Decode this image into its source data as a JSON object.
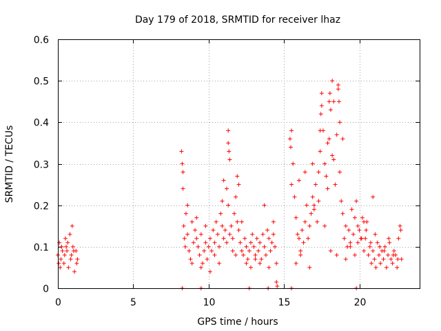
{
  "chart_data": {
    "type": "scatter",
    "title": "Day 179 of 2018, SRMTID for receiver lhaz",
    "xlabel": "GPS time / hours",
    "ylabel": "SRMTID / TECUs",
    "xlim": [
      0,
      24
    ],
    "ylim": [
      0,
      0.6
    ],
    "xticks": [
      0,
      5,
      10,
      15,
      20
    ],
    "xtick_labels": [
      "0",
      "5",
      "10",
      "15",
      "20"
    ],
    "yticks": [
      0,
      0.1,
      0.2,
      0.3,
      0.4,
      0.5,
      0.6
    ],
    "ytick_labels": [
      "0",
      "0.1",
      "0.2",
      "0.3",
      "0.4",
      "0.5",
      "0.6"
    ],
    "grid": true,
    "marker": "+",
    "series": [
      {
        "name": "SRMTID",
        "color": "#ff0000",
        "x": [
          0.0,
          0.1,
          0.2,
          0.3,
          0.4,
          0.5,
          0.6,
          0.7,
          0.8,
          0.9,
          1.0,
          1.1,
          1.2,
          1.3,
          0.05,
          0.25,
          0.45,
          0.65,
          0.85,
          1.05,
          1.25,
          0.15,
          0.55,
          0.95,
          8.2,
          8.25,
          8.3,
          8.35,
          8.4,
          8.45,
          8.5,
          8.6,
          8.7,
          8.8,
          8.9,
          9.0,
          9.1,
          9.2,
          9.3,
          9.4,
          9.5,
          9.6,
          9.7,
          9.8,
          9.9,
          10.0,
          10.1,
          10.2,
          10.3,
          10.4,
          10.5,
          10.6,
          10.7,
          10.8,
          10.9,
          11.0,
          11.1,
          11.2,
          11.3,
          11.4,
          11.5,
          11.6,
          11.7,
          11.8,
          11.9,
          12.0,
          12.1,
          12.2,
          12.3,
          12.4,
          12.5,
          12.6,
          12.7,
          12.8,
          12.9,
          13.0,
          13.1,
          13.2,
          13.3,
          13.4,
          13.5,
          13.6,
          13.7,
          13.8,
          13.9,
          14.0,
          14.1,
          14.2,
          14.3,
          14.4,
          14.5,
          8.3,
          8.6,
          8.9,
          9.2,
          9.5,
          9.8,
          10.1,
          10.4,
          10.7,
          11.0,
          11.3,
          11.6,
          11.9,
          12.2,
          12.5,
          12.8,
          13.1,
          13.4,
          13.7,
          14.0,
          14.3,
          11.3,
          11.35,
          11.4,
          11.2,
          10.9,
          12.0,
          11.8,
          15.4,
          15.5,
          15.6,
          15.7,
          15.8,
          15.9,
          16.0,
          16.1,
          16.2,
          16.3,
          16.4,
          16.5,
          16.6,
          16.7,
          16.8,
          16.9,
          17.0,
          17.1,
          17.2,
          17.3,
          17.4,
          17.5,
          17.6,
          17.7,
          17.8,
          17.9,
          18.0,
          18.1,
          18.2,
          18.3,
          18.4,
          18.5,
          18.6,
          18.7,
          18.8,
          18.9,
          19.0,
          19.1,
          19.2,
          19.3,
          19.4,
          19.5,
          19.6,
          19.7,
          19.8,
          19.9,
          15.5,
          15.8,
          16.1,
          16.4,
          16.7,
          17.0,
          17.3,
          17.5,
          17.7,
          17.9,
          18.1,
          18.3,
          18.5,
          18.7,
          18.9,
          19.1,
          19.4,
          19.7,
          17.4,
          17.45,
          18.0,
          18.05,
          18.2,
          18.6,
          18.65,
          16.9,
          16.0,
          15.45,
          20.0,
          20.1,
          20.2,
          20.3,
          20.4,
          20.5,
          20.6,
          20.7,
          20.8,
          20.9,
          21.0,
          21.1,
          21.2,
          21.3,
          21.4,
          21.5,
          21.6,
          21.7,
          21.8,
          21.9,
          22.0,
          22.1,
          22.2,
          22.3,
          22.4,
          22.5,
          22.6,
          22.7,
          22.8,
          20.15,
          20.45,
          20.75,
          21.05,
          21.35,
          21.65,
          21.95,
          22.25,
          22.55,
          22.75,
          19.9,
          20.3,
          20.9,
          8.25,
          9.5,
          12.7,
          13.95,
          15.5,
          19.8,
          14.5,
          14.55
        ],
        "y": [
          0.08,
          0.11,
          0.07,
          0.09,
          0.06,
          0.12,
          0.09,
          0.05,
          0.13,
          0.08,
          0.1,
          0.04,
          0.09,
          0.07,
          0.06,
          0.1,
          0.08,
          0.11,
          0.07,
          0.09,
          0.06,
          0.05,
          0.1,
          0.15,
          0.33,
          0.3,
          0.24,
          0.15,
          0.12,
          0.1,
          0.18,
          0.13,
          0.09,
          0.07,
          0.16,
          0.11,
          0.14,
          0.12,
          0.1,
          0.08,
          0.13,
          0.06,
          0.09,
          0.11,
          0.07,
          0.1,
          0.12,
          0.09,
          0.14,
          0.11,
          0.16,
          0.13,
          0.1,
          0.18,
          0.15,
          0.12,
          0.14,
          0.11,
          0.2,
          0.13,
          0.15,
          0.12,
          0.18,
          0.22,
          0.16,
          0.14,
          0.11,
          0.09,
          0.08,
          0.12,
          0.1,
          0.07,
          0.09,
          0.11,
          0.13,
          0.1,
          0.08,
          0.12,
          0.09,
          0.11,
          0.07,
          0.13,
          0.1,
          0.08,
          0.14,
          0.12,
          0.09,
          0.11,
          0.13,
          0.1,
          0.06,
          0.28,
          0.2,
          0.06,
          0.17,
          0.05,
          0.15,
          0.04,
          0.08,
          0.06,
          0.26,
          0.38,
          0.09,
          0.27,
          0.16,
          0.06,
          0.05,
          0.07,
          0.06,
          0.2,
          0.05,
          0.16,
          0.35,
          0.33,
          0.31,
          0.24,
          0.21,
          0.25,
          0.08,
          0.36,
          0.38,
          0.3,
          0.22,
          0.17,
          0.13,
          0.12,
          0.09,
          0.14,
          0.11,
          0.16,
          0.2,
          0.12,
          0.15,
          0.18,
          0.22,
          0.19,
          0.25,
          0.16,
          0.21,
          0.33,
          0.47,
          0.38,
          0.3,
          0.27,
          0.24,
          0.36,
          0.43,
          0.5,
          0.31,
          0.25,
          0.37,
          0.49,
          0.28,
          0.21,
          0.18,
          0.12,
          0.15,
          0.1,
          0.14,
          0.11,
          0.19,
          0.13,
          0.17,
          0.21,
          0.15,
          0.25,
          0.06,
          0.08,
          0.28,
          0.05,
          0.2,
          0.28,
          0.44,
          0.15,
          0.35,
          0.09,
          0.45,
          0.08,
          0.4,
          0.36,
          0.07,
          0.1,
          0.08,
          0.38,
          0.42,
          0.45,
          0.47,
          0.32,
          0.48,
          0.45,
          0.3,
          0.26,
          0.34,
          0.14,
          0.12,
          0.17,
          0.09,
          0.12,
          0.16,
          0.08,
          0.1,
          0.06,
          0.09,
          0.07,
          0.05,
          0.11,
          0.08,
          0.06,
          0.09,
          0.07,
          0.1,
          0.05,
          0.08,
          0.11,
          0.07,
          0.06,
          0.09,
          0.08,
          0.05,
          0.12,
          0.15,
          0.07,
          0.12,
          0.14,
          0.11,
          0.13,
          0.1,
          0.09,
          0.12,
          0.08,
          0.07,
          0.14,
          0.11,
          0.16,
          0.22,
          0.0,
          0.0,
          0.0,
          0.0,
          0.0,
          0.0,
          0.015,
          0.005
        ]
      }
    ]
  }
}
